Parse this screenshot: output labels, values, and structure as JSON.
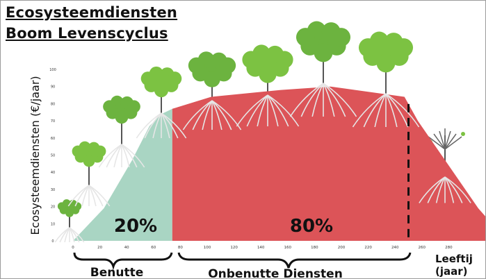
{
  "title_line1": "Ecosysteemdiensten",
  "title_line2": "Boom Levenscyclus",
  "chart_data": {
    "type": "area",
    "ylabel": "Ecosysteemdiensten (€/jaar)",
    "xlabel": "Leeftij (jaar)",
    "xlabel_line1": "Leeftij",
    "xlabel_line2": "(jaar)",
    "xlim": [
      0,
      310
    ],
    "ylim": [
      0,
      100
    ],
    "x_ticks": [
      0,
      20,
      40,
      60,
      80,
      100,
      120,
      140,
      160,
      180,
      200,
      220,
      240,
      260,
      280
    ],
    "y_ticks": [
      0,
      10,
      20,
      30,
      40,
      50,
      60,
      70,
      80,
      90,
      100
    ],
    "profile": [
      [
        0,
        0
      ],
      [
        23,
        19
      ],
      [
        44,
        47
      ],
      [
        57,
        67
      ],
      [
        66,
        74
      ],
      [
        74,
        77
      ],
      [
        103,
        84
      ],
      [
        155,
        88
      ],
      [
        192,
        90
      ],
      [
        247,
        84
      ],
      [
        257,
        70
      ],
      [
        302,
        19
      ],
      [
        311,
        11
      ]
    ],
    "regions": [
      {
        "label": "20%",
        "from": 0,
        "to": 74,
        "color": "#a9d5c3",
        "bracket": "Benutte"
      },
      {
        "label": "80%",
        "from": 74,
        "to": 311,
        "color": "#dc5458",
        "bracket": "Onbenutte Diensten"
      }
    ],
    "dashed_marker_x": 250,
    "grid": false
  }
}
